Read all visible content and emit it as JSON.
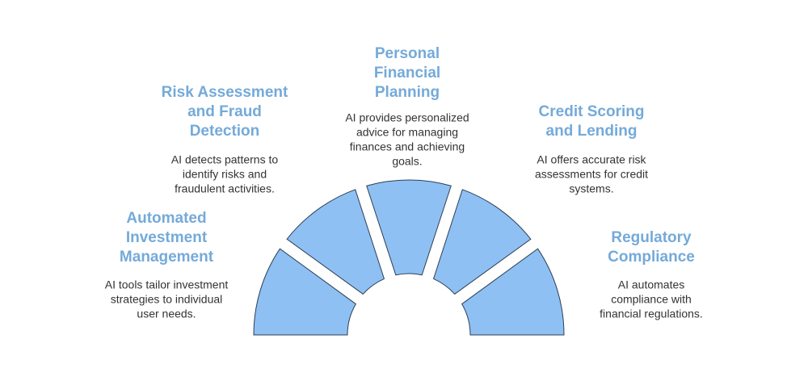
{
  "items": [
    {
      "title": [
        "Automated",
        "Investment",
        "Management"
      ],
      "description": [
        "AI tools tailor investment",
        "strategies to individual",
        "user needs."
      ]
    },
    {
      "title": [
        "Risk Assessment",
        "and Fraud",
        "Detection"
      ],
      "description": [
        "AI detects patterns to",
        "identify risks and",
        "fraudulent activities."
      ]
    },
    {
      "title": [
        "Personal",
        "Financial",
        "Planning"
      ],
      "description": [
        "AI provides personalized",
        "advice for managing",
        "finances and achieving",
        "goals."
      ]
    },
    {
      "title": [
        "Credit Scoring",
        "and Lending"
      ],
      "description": [
        "AI offers accurate risk",
        "assessments for credit",
        "systems."
      ]
    },
    {
      "title": [
        "Regulatory",
        "Compliance"
      ],
      "description": [
        "AI automates",
        "compliance with",
        "financial regulations."
      ]
    }
  ]
}
